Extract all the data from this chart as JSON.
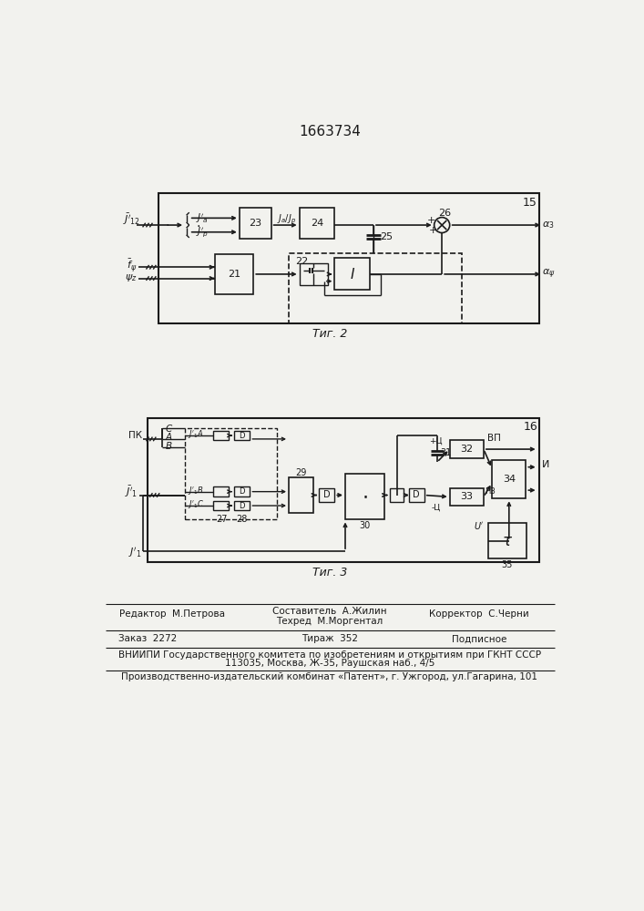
{
  "title": "1663734",
  "fig2_label": "Τиг. 2",
  "fig3_label": "Τиг. 3",
  "bg_color": "#f2f2ee",
  "line_color": "#1a1a1a",
  "footer_line1_left": "Редактор  М.Петрова",
  "footer_line1_center1": "Составитель  А.Жилин",
  "footer_line1_center2": "Техред  М.Моргентал",
  "footer_line1_right": "Корректор  С.Черни",
  "footer_line2_col1": "Заказ  2272",
  "footer_line2_col2": "Тираж  352",
  "footer_line2_col3": "Подписное",
  "footer_line3": "ВНИИПИ Государственного комитета по изобретениям и открытиям при ГКНТ СССР",
  "footer_line4": "113035, Москва, Ж-35, Раушская наб., 4/5",
  "footer_line5": "Производственно-издательский комбинат «Патент», г. Ужгород, ул.Гагарина, 101"
}
